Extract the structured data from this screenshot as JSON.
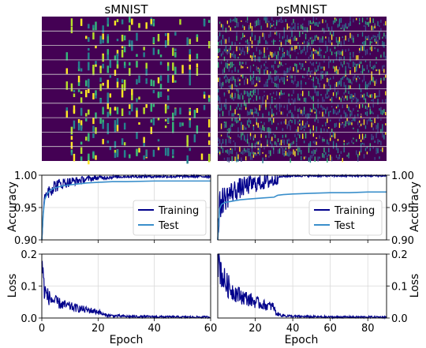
{
  "colors": {
    "training": "#00008b",
    "test": "#3a8fcb",
    "grid": "#d9d9d9",
    "viridis_dark": "#440154",
    "viridis_bright": "#fde725"
  },
  "chart_data": [
    {
      "type": "heatmap",
      "title": "sMNIST",
      "description_colormap": "viridis",
      "rows_separated_by_lines": 10
    },
    {
      "type": "heatmap",
      "title": "psMNIST",
      "description_colormap": "viridis",
      "rows_separated_by_lines": 10
    },
    {
      "type": "line",
      "xlabel": "",
      "ylabel": "Accuracy",
      "xlim": [
        0,
        60
      ],
      "ylim": [
        0.9,
        1.0
      ],
      "yticks": [
        "0.90",
        "0.95",
        "1.00"
      ],
      "xticks": [
        0,
        20,
        40,
        60
      ],
      "grid": true,
      "legend_position": "lower-right",
      "series": [
        {
          "name": "Training",
          "x": [
            0,
            0.5,
            1,
            2,
            3,
            5,
            8,
            12,
            16,
            20,
            25,
            30,
            40,
            50,
            60
          ],
          "values": [
            0.9,
            0.94,
            0.965,
            0.975,
            0.98,
            0.984,
            0.988,
            0.991,
            0.994,
            0.996,
            0.997,
            0.998,
            0.998,
            0.998,
            0.998
          ]
        },
        {
          "name": "Test",
          "x": [
            0,
            0.5,
            1,
            2,
            3,
            5,
            8,
            12,
            16,
            20,
            25,
            30,
            40,
            50,
            60
          ],
          "values": [
            0.9,
            0.94,
            0.962,
            0.972,
            0.977,
            0.981,
            0.984,
            0.986,
            0.988,
            0.989,
            0.99,
            0.99,
            0.991,
            0.991,
            0.991
          ]
        }
      ]
    },
    {
      "type": "line",
      "xlabel": "",
      "ylabel": "Accuracy",
      "xlim": [
        0,
        90
      ],
      "ylim": [
        0.9,
        1.0
      ],
      "yticks": [
        "0.90",
        "0.95",
        "1.00"
      ],
      "xticks": [
        20,
        40,
        60,
        80
      ],
      "grid": true,
      "legend_position": "lower-right",
      "series": [
        {
          "name": "Training",
          "x": [
            0,
            1,
            2,
            4,
            8,
            12,
            16,
            20,
            25,
            30,
            32,
            35,
            40,
            50,
            60,
            70,
            80,
            90
          ],
          "values": [
            0.9,
            0.95,
            0.96,
            0.965,
            0.975,
            0.98,
            0.984,
            0.987,
            0.99,
            0.992,
            0.997,
            0.998,
            0.999,
            0.999,
            0.999,
            0.999,
            0.999,
            0.999
          ]
        },
        {
          "name": "Test",
          "x": [
            0,
            1,
            2,
            4,
            8,
            12,
            16,
            20,
            25,
            30,
            32,
            35,
            40,
            50,
            60,
            70,
            80,
            90
          ],
          "values": [
            0.9,
            0.948,
            0.955,
            0.958,
            0.96,
            0.962,
            0.963,
            0.964,
            0.965,
            0.966,
            0.969,
            0.97,
            0.971,
            0.972,
            0.973,
            0.973,
            0.974,
            0.974
          ]
        }
      ]
    },
    {
      "type": "line",
      "xlabel": "Epoch",
      "ylabel": "Loss",
      "xlim": [
        0,
        60
      ],
      "ylim": [
        0.0,
        0.2
      ],
      "yticks": [
        "0.0",
        "0.1",
        "0.2"
      ],
      "xticks": [
        0,
        20,
        40,
        60
      ],
      "grid": true,
      "series": [
        {
          "name": "Training",
          "x": [
            0,
            0.5,
            1,
            2,
            3,
            5,
            8,
            12,
            16,
            20,
            22,
            25,
            30,
            40,
            50,
            60
          ],
          "values": [
            0.2,
            0.12,
            0.085,
            0.07,
            0.06,
            0.05,
            0.04,
            0.032,
            0.025,
            0.02,
            0.01,
            0.007,
            0.005,
            0.004,
            0.003,
            0.003
          ]
        }
      ]
    },
    {
      "type": "line",
      "xlabel": "Epoch",
      "ylabel": "Loss",
      "xlim": [
        0,
        90
      ],
      "ylim": [
        0.0,
        0.2
      ],
      "yticks": [
        "0.0",
        "0.1",
        "0.2"
      ],
      "xticks": [
        20,
        40,
        60,
        80
      ],
      "grid": true,
      "series": [
        {
          "name": "Training",
          "x": [
            0,
            1,
            2,
            4,
            8,
            12,
            16,
            20,
            25,
            30,
            31,
            33,
            36,
            40,
            50,
            60,
            70,
            80,
            90
          ],
          "values": [
            0.2,
            0.17,
            0.14,
            0.11,
            0.085,
            0.07,
            0.06,
            0.05,
            0.04,
            0.035,
            0.015,
            0.01,
            0.007,
            0.005,
            0.004,
            0.003,
            0.003,
            0.003,
            0.003
          ]
        }
      ]
    }
  ]
}
